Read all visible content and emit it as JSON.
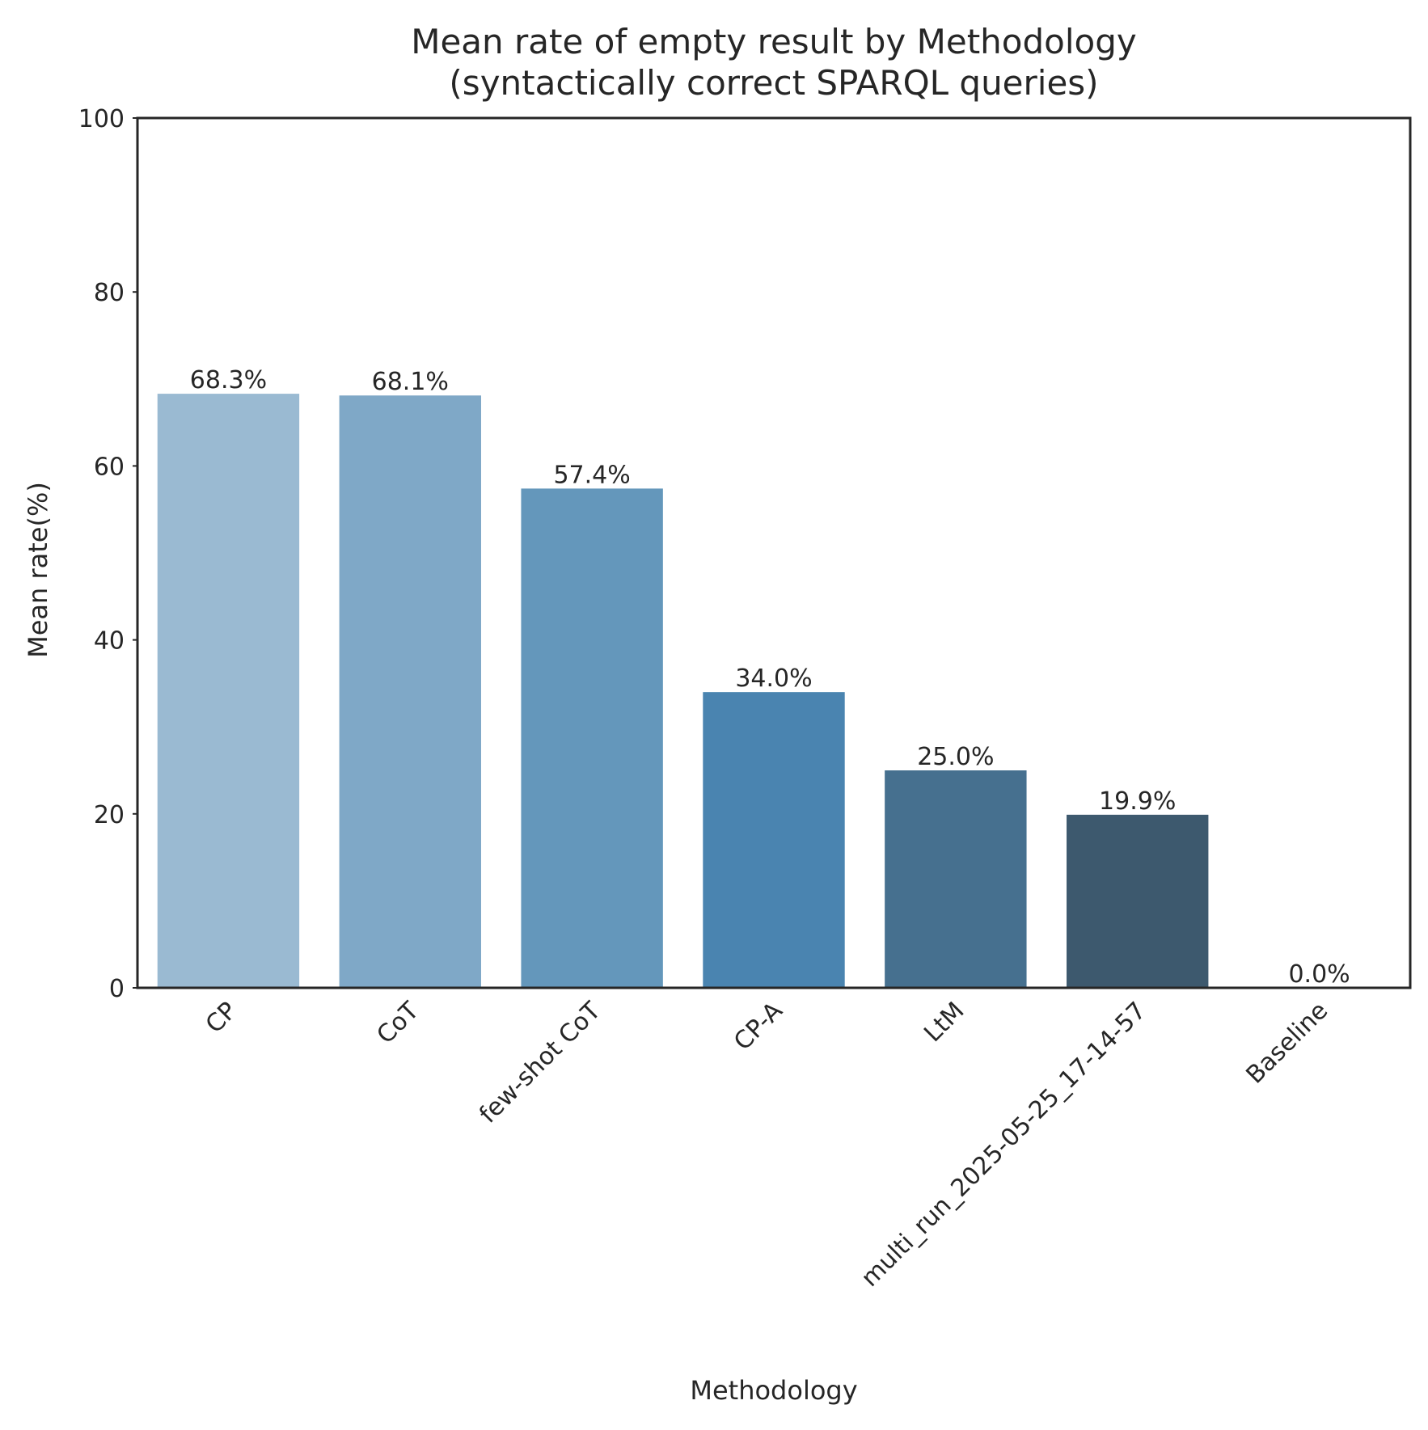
{
  "chart_data": {
    "type": "bar",
    "title": "Mean rate of empty result by Methodology",
    "subtitle": "(syntactically correct SPARQL queries)",
    "xlabel": "Methodology",
    "ylabel": "Mean rate(%)",
    "ylim": [
      0,
      100
    ],
    "yticks": [
      "0",
      "20",
      "40",
      "60",
      "80",
      "100"
    ],
    "categories": [
      "CP",
      "CoT",
      "few-shot CoT",
      "CP-A",
      "LtM",
      "multi_run_2025-05-25_17-14-57",
      "Baseline"
    ],
    "values": [
      68.3,
      68.1,
      57.4,
      34.0,
      25.0,
      19.9,
      0.0
    ],
    "data_labels": [
      "68.3%",
      "68.1%",
      "57.4%",
      "34.0%",
      "25.0%",
      "19.9%",
      "0.0%"
    ],
    "colors": [
      "#9abad2",
      "#7fa8c7",
      "#6497bb",
      "#4a84b0",
      "#46708f",
      "#3d596e",
      "#2f4453"
    ],
    "grid": false,
    "legend": "none"
  }
}
